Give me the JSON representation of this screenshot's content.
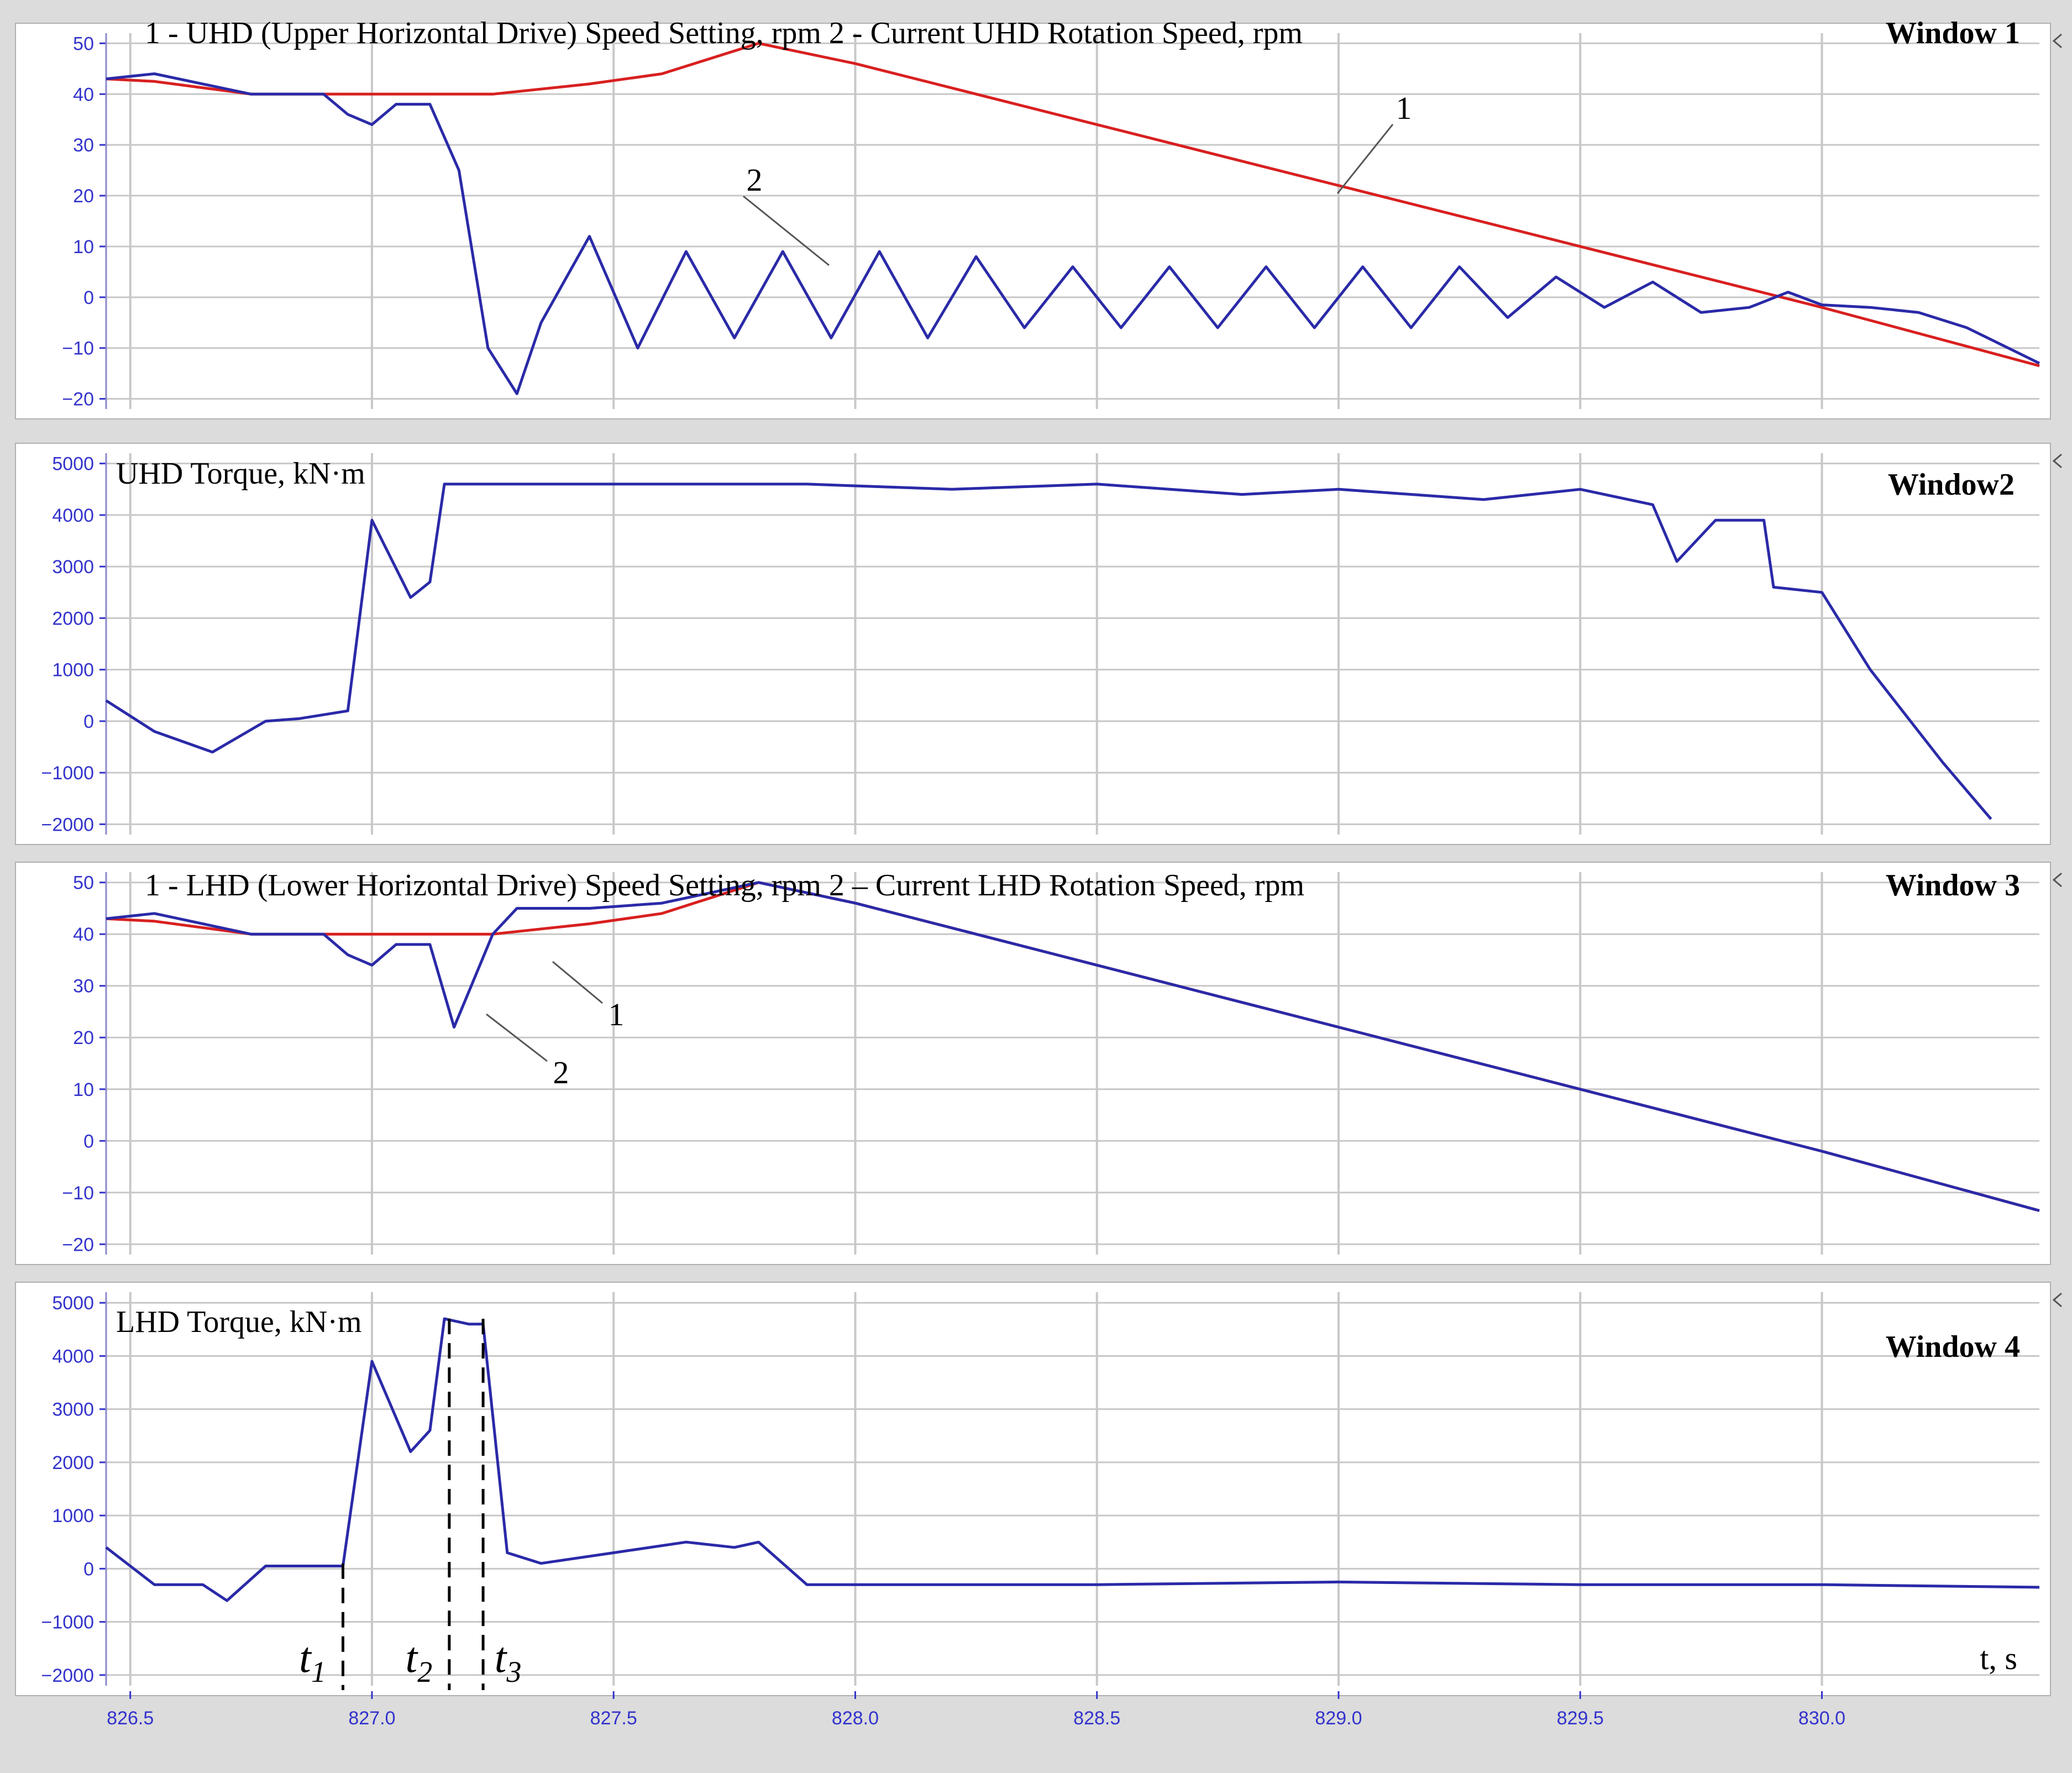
{
  "colors": {
    "background": "#dcdcdc",
    "panel": "#ffffff",
    "grid": "#c8c8c8",
    "axis_text": "#3333cc",
    "series_measured": "#2a2aa8",
    "series_setting": "#d82020",
    "text": "#000000"
  },
  "chart_data": [
    {
      "type": "line",
      "window_label": "Window 1",
      "title": "1 - UHD (Upper Horizontal Drive) Speed Setting, rpm      2 - Current UHD Rotation Speed, rpm",
      "xlim": [
        826.45,
        830.45
      ],
      "ylim": [
        -22,
        52
      ],
      "yticks": [
        50,
        40,
        30,
        20,
        10,
        0,
        -10,
        -20
      ],
      "ytick_labels": [
        "50",
        "40",
        "30",
        "20",
        "10",
        "0",
        "−10",
        "−20"
      ],
      "annotations": [
        {
          "text": "1",
          "series": 0
        },
        {
          "text": "2",
          "series": 1
        }
      ],
      "series": [
        {
          "name": "1",
          "color": "#d82020",
          "x": [
            826.45,
            826.55,
            826.75,
            827.0,
            827.25,
            827.45,
            827.6,
            827.8,
            828.0,
            828.5,
            829.0,
            829.5,
            830.0,
            830.45
          ],
          "y": [
            43,
            42.5,
            40,
            40,
            40,
            42,
            44,
            50,
            46,
            34,
            22,
            10,
            -2,
            -13.5
          ]
        },
        {
          "name": "2",
          "color": "#2a2aa8",
          "x": [
            826.45,
            826.55,
            826.65,
            826.75,
            826.9,
            826.95,
            827.0,
            827.05,
            827.12,
            827.18,
            827.24,
            827.3,
            827.35,
            827.45,
            827.55,
            827.65,
            827.75,
            827.85,
            827.95,
            828.05,
            828.15,
            828.25,
            828.35,
            828.45,
            828.55,
            828.65,
            828.75,
            828.85,
            828.95,
            829.05,
            829.15,
            829.25,
            829.35,
            829.45,
            829.55,
            829.65,
            829.75,
            829.85,
            829.93,
            830.0,
            830.1,
            830.2,
            830.3,
            830.45
          ],
          "y": [
            43,
            44,
            42,
            40,
            40,
            36,
            34,
            38,
            38,
            25,
            -10,
            -19,
            -5,
            12,
            -10,
            9,
            -8,
            9,
            -8,
            9,
            -8,
            8,
            -6,
            6,
            -6,
            6,
            -6,
            6,
            -6,
            6,
            -6,
            6,
            -4,
            4,
            -2,
            3,
            -3,
            -2,
            1,
            -1.5,
            -2,
            -3,
            -6,
            -13
          ]
        }
      ]
    },
    {
      "type": "line",
      "window_label": "Window2",
      "title": "UHD Torque, kN·m",
      "xlim": [
        826.45,
        830.45
      ],
      "ylim": [
        -2200,
        5200
      ],
      "yticks": [
        5000,
        4000,
        3000,
        2000,
        1000,
        0,
        -1000,
        -2000
      ],
      "ytick_labels": [
        "5000",
        "4000",
        "3000",
        "2000",
        "1000",
        "0",
        "−1000",
        "−2000"
      ],
      "series": [
        {
          "name": "",
          "color": "#2a2aa8",
          "x": [
            826.45,
            826.55,
            826.67,
            826.78,
            826.85,
            826.95,
            827.0,
            827.08,
            827.12,
            827.15,
            827.2,
            827.5,
            827.9,
            828.2,
            828.5,
            828.8,
            829.0,
            829.3,
            829.5,
            829.65,
            829.7,
            829.78,
            829.88,
            829.9,
            830.0,
            830.1,
            830.25,
            830.35
          ],
          "y": [
            400,
            -200,
            -600,
            0,
            50,
            200,
            3900,
            2400,
            2700,
            4600,
            4600,
            4600,
            4600,
            4500,
            4600,
            4400,
            4500,
            4300,
            4500,
            4200,
            3100,
            3900,
            3900,
            2600,
            2500,
            1000,
            -800,
            -1900
          ]
        }
      ]
    },
    {
      "type": "line",
      "window_label": "Window 3",
      "title": "1 - LHD (Lower Horizontal Drive) Speed Setting, rpm      2 – Current LHD Rotation Speed, rpm",
      "xlim": [
        826.45,
        830.45
      ],
      "ylim": [
        -22,
        52
      ],
      "yticks": [
        50,
        40,
        30,
        20,
        10,
        0,
        -10,
        -20
      ],
      "ytick_labels": [
        "50",
        "40",
        "30",
        "20",
        "10",
        "0",
        "−10",
        "−20"
      ],
      "annotations": [
        {
          "text": "1",
          "series": 0
        },
        {
          "text": "2",
          "series": 1
        }
      ],
      "series": [
        {
          "name": "1",
          "color": "#d82020",
          "x": [
            826.45,
            826.55,
            826.75,
            827.0,
            827.25,
            827.45,
            827.6,
            827.8,
            828.0,
            828.5,
            829.0,
            829.5,
            830.0,
            830.45
          ],
          "y": [
            43,
            42.5,
            40,
            40,
            40,
            42,
            44,
            50,
            46,
            34,
            22,
            10,
            -2,
            -13.5
          ]
        },
        {
          "name": "2",
          "color": "#2a2aa8",
          "x": [
            826.45,
            826.55,
            826.75,
            826.9,
            826.95,
            827.0,
            827.05,
            827.12,
            827.17,
            827.25,
            827.3,
            827.45,
            827.6,
            827.8,
            828.0,
            828.5,
            829.0,
            829.5,
            830.0,
            830.45
          ],
          "y": [
            43,
            44,
            40,
            40,
            36,
            34,
            38,
            38,
            22,
            40,
            45,
            45,
            46,
            50,
            46,
            34,
            22,
            10,
            -2,
            -13.5
          ]
        }
      ]
    },
    {
      "type": "line",
      "window_label": "Window 4",
      "title": "LHD Torque, kN·m",
      "xlabel": "t, s",
      "xlim": [
        826.45,
        830.45
      ],
      "ylim": [
        -2200,
        5200
      ],
      "yticks": [
        5000,
        4000,
        3000,
        2000,
        1000,
        0,
        -1000,
        -2000
      ],
      "ytick_labels": [
        "5000",
        "4000",
        "3000",
        "2000",
        "1000",
        "0",
        "−1000",
        "−2000"
      ],
      "xticks": [
        826.5,
        827.0,
        827.5,
        828.0,
        828.5,
        829.0,
        829.5,
        830.0
      ],
      "xtick_labels": [
        "826.5",
        "827.0",
        "827.5",
        "828.0",
        "828.5",
        "829.0",
        "829.5",
        "830.0"
      ],
      "markers": [
        {
          "x": 826.94,
          "label": "t",
          "sub": "1"
        },
        {
          "x": 827.16,
          "label": "t",
          "sub": "2"
        },
        {
          "x": 827.23,
          "label": "t",
          "sub": "3"
        }
      ],
      "series": [
        {
          "name": "",
          "color": "#2a2aa8",
          "x": [
            826.45,
            826.55,
            826.65,
            826.7,
            826.78,
            826.94,
            827.0,
            827.08,
            827.12,
            827.15,
            827.2,
            827.23,
            827.28,
            827.35,
            827.5,
            827.65,
            827.75,
            827.8,
            827.9,
            828.0,
            828.5,
            829.0,
            829.5,
            829.9,
            830.0,
            830.45
          ],
          "y": [
            400,
            -300,
            -300,
            -600,
            50,
            50,
            3900,
            2200,
            2600,
            4700,
            4600,
            4600,
            300,
            100,
            300,
            500,
            400,
            500,
            -300,
            -300,
            -300,
            -250,
            -300,
            -300,
            -300,
            -350
          ]
        }
      ]
    }
  ]
}
